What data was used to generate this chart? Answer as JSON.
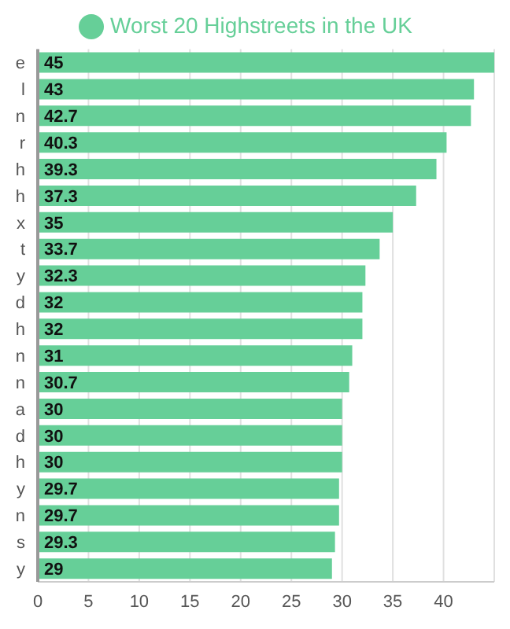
{
  "chart_data": {
    "type": "bar",
    "orientation": "horizontal",
    "categories": [
      "e",
      "l",
      "n",
      "r",
      "h",
      "h",
      "x",
      "t",
      "y",
      "d",
      "h",
      "n",
      "n",
      "a",
      "d",
      "h",
      "y",
      "n",
      "s",
      "y"
    ],
    "series": [
      {
        "name": "Worst 20 Highstreets in the UK",
        "color": "#66cf98",
        "values": [
          45,
          43,
          42.7,
          40.3,
          39.3,
          37.3,
          35,
          33.7,
          32.3,
          32,
          32,
          31,
          30.7,
          30,
          30,
          30,
          29.7,
          29.7,
          29.3,
          29
        ]
      }
    ],
    "xlim": [
      0,
      45
    ],
    "xticks": [
      0,
      5,
      10,
      15,
      20,
      25,
      30,
      35,
      40
    ],
    "grid": "x",
    "legend": "top",
    "data_labels": true
  }
}
